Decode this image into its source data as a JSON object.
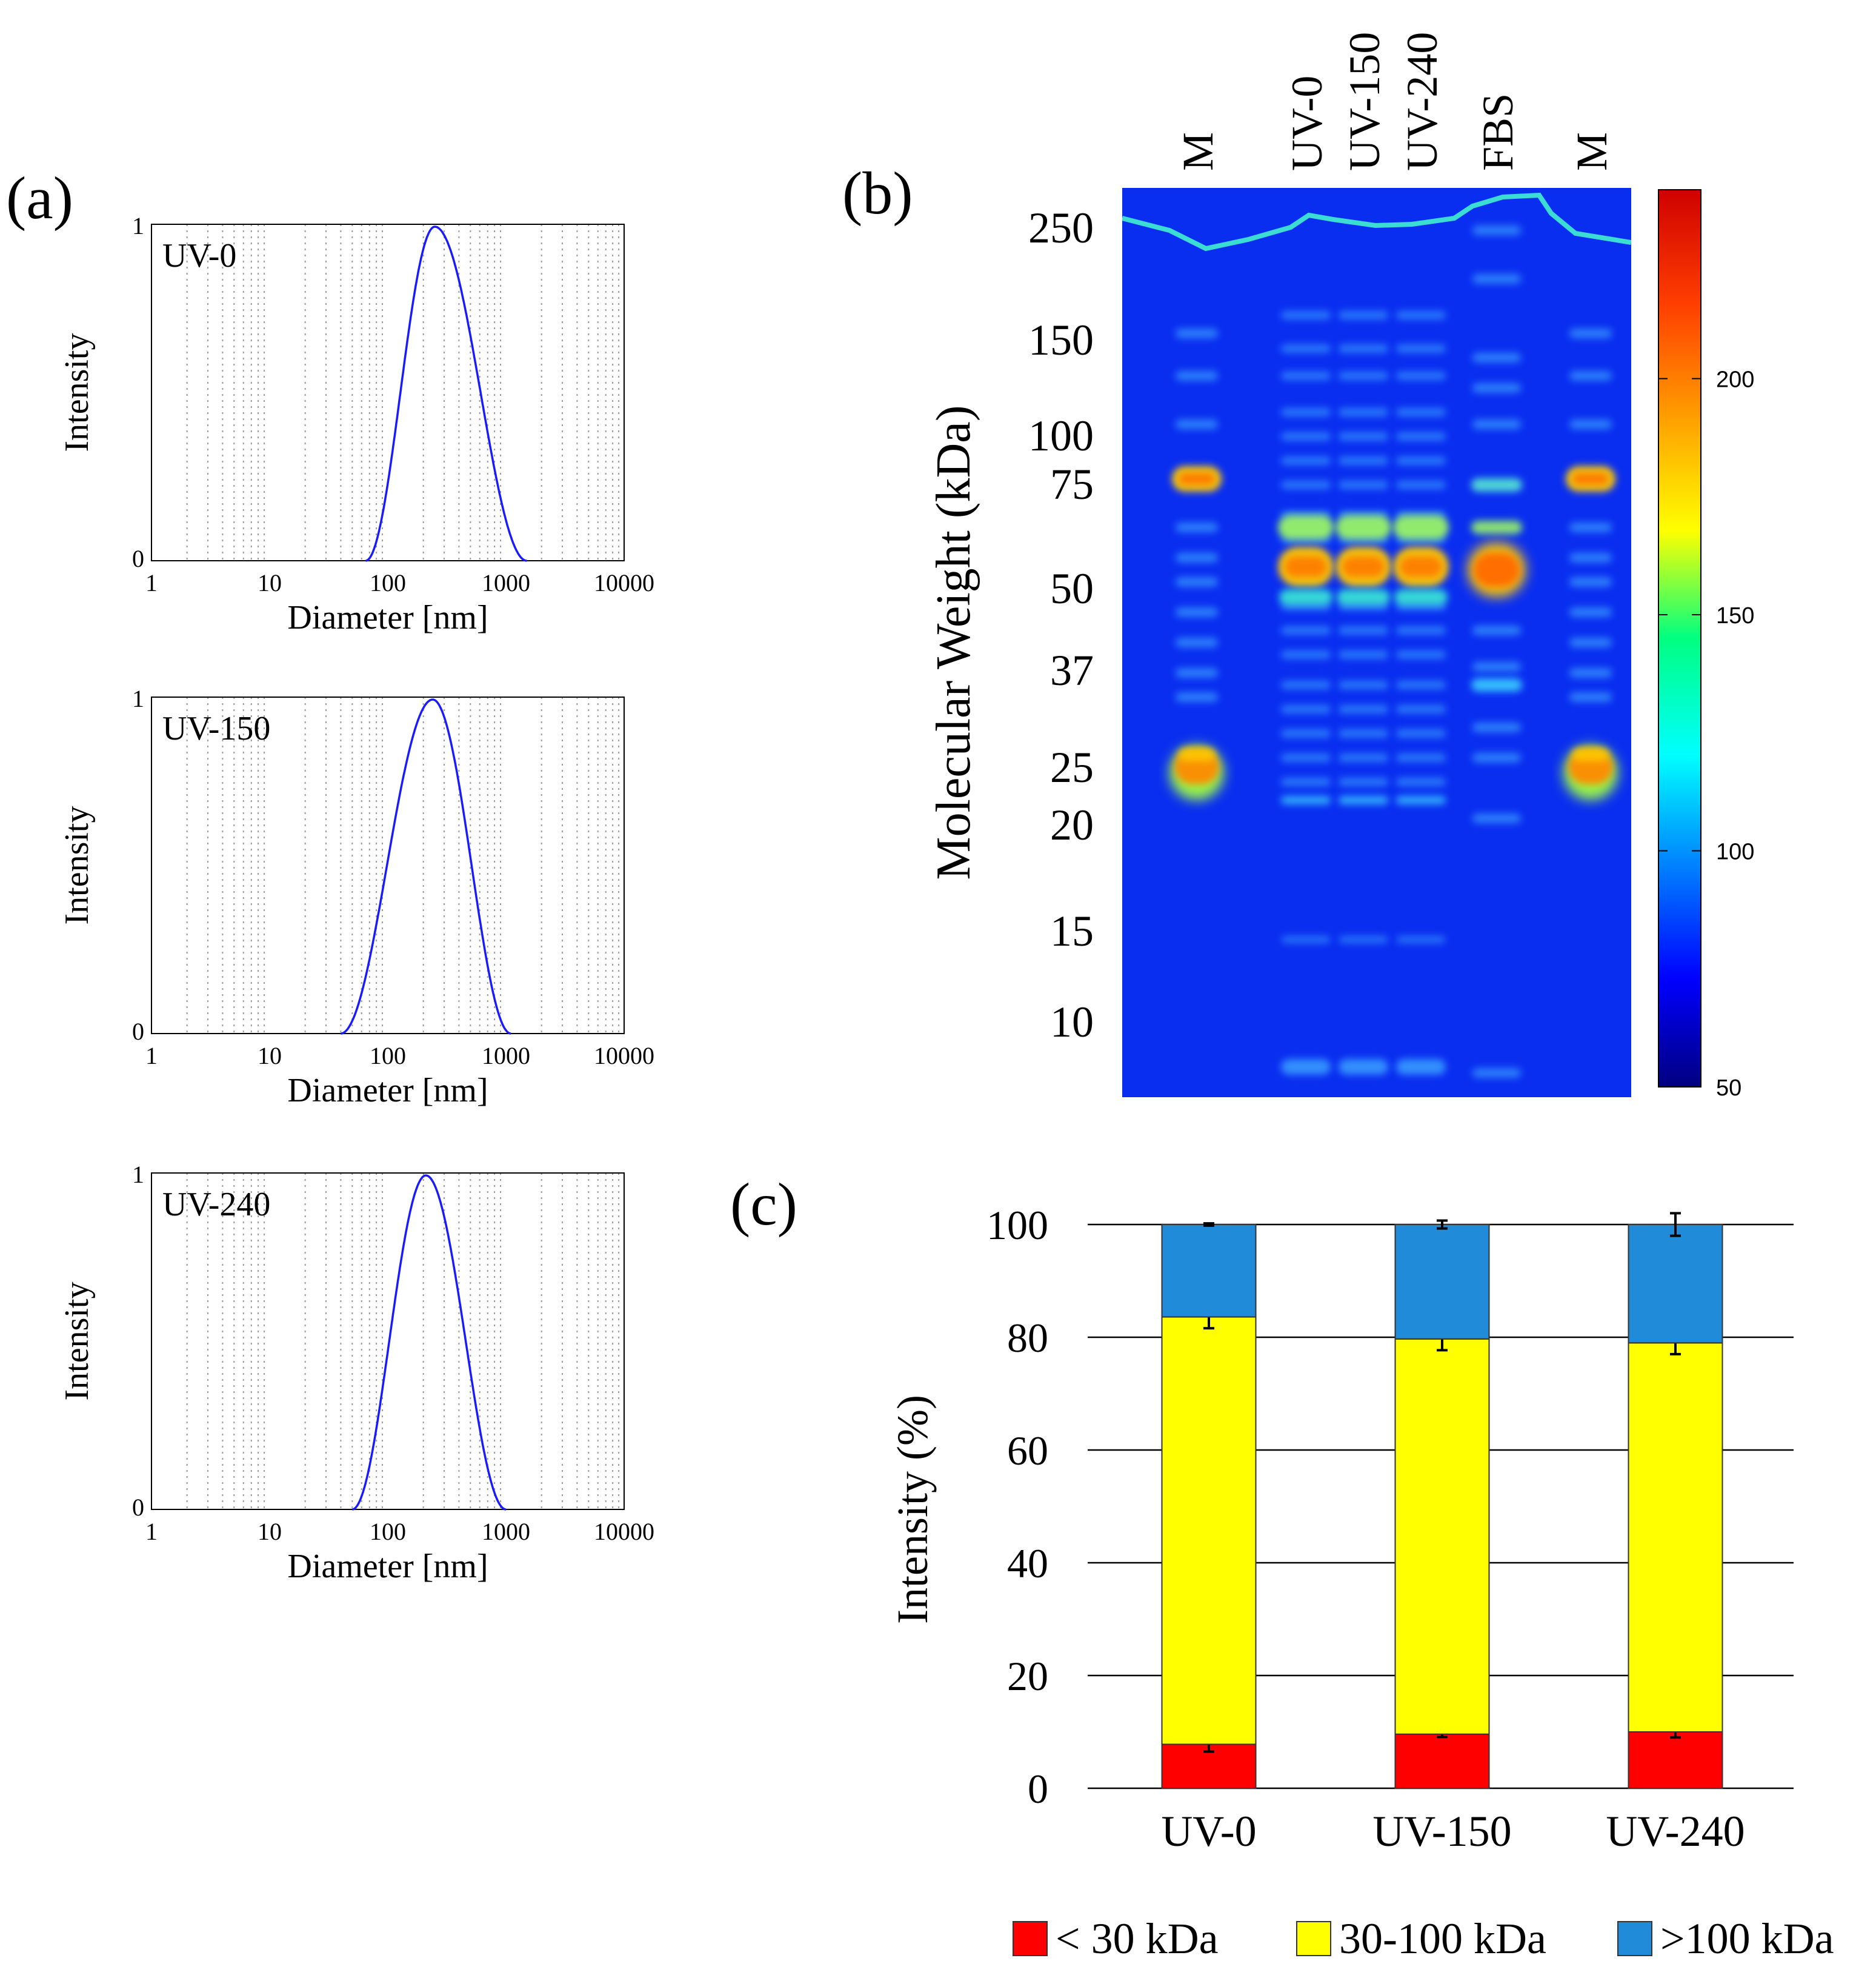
{
  "panel_labels": {
    "a": "(a)",
    "b": "(b)",
    "c": "(c)"
  },
  "colors": {
    "dls_line": "#1a1aff",
    "red": "#ff0000",
    "yellow": "#ffff00",
    "blue": "#1f8bd9",
    "gel_background": "#0a2ef0"
  },
  "chart_data": [
    {
      "type": "line",
      "panel": "a",
      "label": "UV-0",
      "xscale": "log",
      "xlim": [
        1,
        10000
      ],
      "ylim": [
        0,
        1
      ],
      "xticks": [
        "1",
        "10",
        "100",
        "1000",
        "10000"
      ],
      "yticks": [
        "0",
        "1"
      ],
      "xlabel": "Diameter [nm]",
      "ylabel": "Intensity",
      "grid": true,
      "peak_nm": 250,
      "range_nm": [
        65,
        1500
      ]
    },
    {
      "type": "line",
      "panel": "a",
      "label": "UV-150",
      "xscale": "log",
      "xlim": [
        1,
        10000
      ],
      "ylim": [
        0,
        1
      ],
      "xticks": [
        "1",
        "10",
        "100",
        "1000",
        "10000"
      ],
      "yticks": [
        "0",
        "1"
      ],
      "xlabel": "Diameter [nm]",
      "ylabel": "Intensity",
      "grid": true,
      "peak_nm": 240,
      "range_nm": [
        40,
        1100
      ]
    },
    {
      "type": "line",
      "panel": "a",
      "label": "UV-240",
      "xscale": "log",
      "xlim": [
        1,
        10000
      ],
      "ylim": [
        0,
        1
      ],
      "xticks": [
        "1",
        "10",
        "100",
        "1000",
        "10000"
      ],
      "yticks": [
        "0",
        "1"
      ],
      "xlabel": "Diameter [nm]",
      "ylabel": "Intensity",
      "grid": true,
      "peak_nm": 210,
      "range_nm": [
        50,
        1000
      ]
    },
    {
      "type": "heatmap",
      "panel": "b",
      "lanes": [
        "M",
        "UV-0",
        "UV-150",
        "UV-240",
        "FBS",
        "M"
      ],
      "ylabel": "Molecular Weight (kDa)",
      "mw_ticks": [
        "250",
        "150",
        "100",
        "75",
        "50",
        "37",
        "25",
        "20",
        "15",
        "10"
      ],
      "colorbar": {
        "min": 50,
        "max": 240,
        "ticks": [
          "200",
          "150",
          "100",
          "50"
        ]
      }
    },
    {
      "type": "bar",
      "stacked": true,
      "panel": "c",
      "categories": [
        "UV-0",
        "UV-150",
        "UV-240"
      ],
      "series": [
        {
          "name": "< 30 kDa",
          "color": "#ff0000",
          "values": [
            7.8,
            9.6,
            10.0
          ],
          "errors": [
            1.3,
            0.5,
            1.0
          ]
        },
        {
          "name": "30-100 kDa",
          "color": "#ffff00",
          "values": [
            75.8,
            70.1,
            69.0
          ],
          "errors": [
            2.0,
            2.0,
            2.0
          ]
        },
        {
          "name": ">100 kDa",
          "color": "#1f8bd9",
          "values": [
            16.4,
            20.3,
            21.0
          ],
          "errors": [
            0.2,
            0.7,
            2.0
          ]
        }
      ],
      "ylabel": "Intensity (%)",
      "ylim": [
        0,
        100
      ],
      "yticks": [
        "0",
        "20",
        "40",
        "60",
        "80",
        "100"
      ],
      "grid": true
    }
  ]
}
